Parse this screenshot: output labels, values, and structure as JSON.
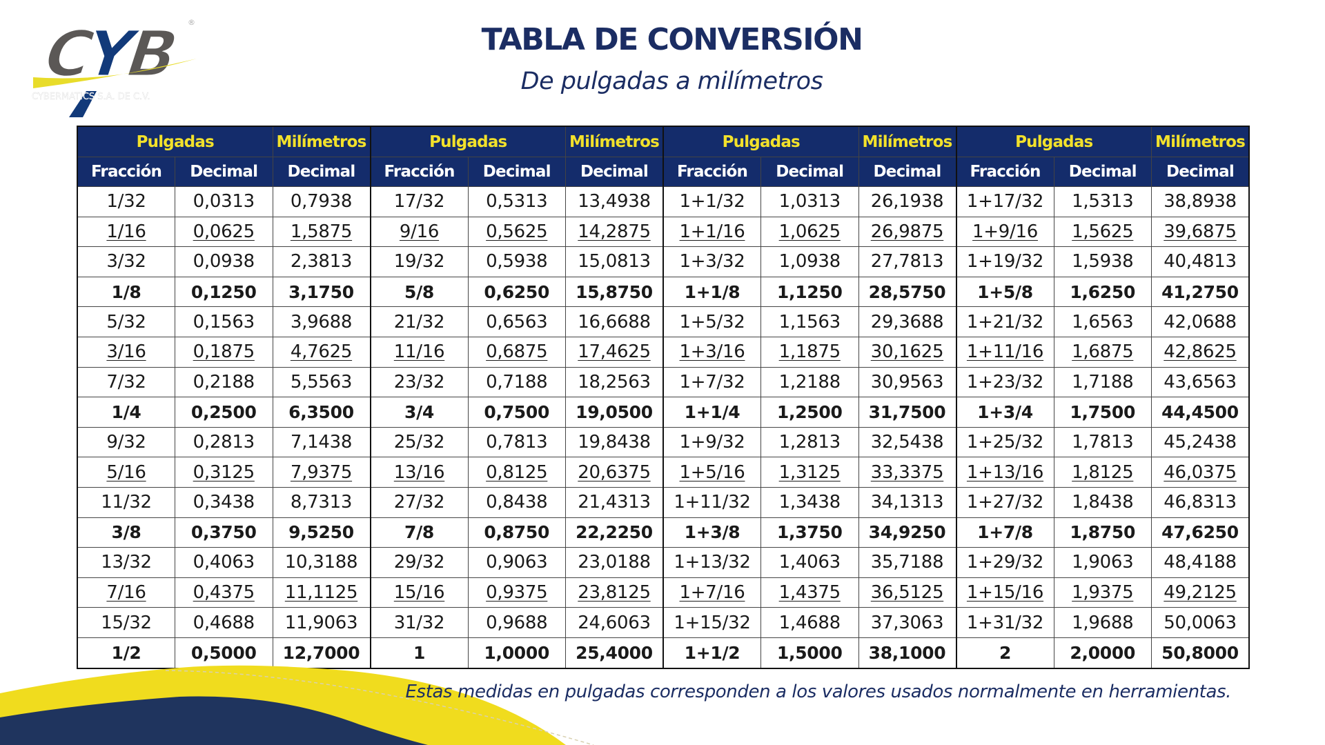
{
  "logo": {
    "text": "CYB",
    "tagline": "CYBERMATICS S.A. DE C.V.",
    "colors": {
      "gray": "#5b5856",
      "navy": "#123a7a",
      "yellow": "#e8dc2a"
    }
  },
  "title": "TABLA DE CONVERSIÓN",
  "subtitle": "De pulgadas a milímetros",
  "table": {
    "group_headers": [
      "Pulgadas",
      "Milímetros",
      "Pulgadas",
      "Milímetros",
      "Pulgadas",
      "Milímetros",
      "Pulgadas",
      "Milímetros"
    ],
    "sub_headers": [
      "Fracción",
      "Decimal",
      "Decimal",
      "Fracción",
      "Decimal",
      "Decimal",
      "Fracción",
      "Decimal",
      "Decimal",
      "Fracción",
      "Decimal",
      "Decimal"
    ],
    "rows": [
      {
        "style": "normal",
        "cells": [
          "1/32",
          "0,0313",
          "0,7938",
          "17/32",
          "0,5313",
          "13,4938",
          "1+1/32",
          "1,0313",
          "26,1938",
          "1+17/32",
          "1,5313",
          "38,8938"
        ]
      },
      {
        "style": "underline",
        "cells": [
          "1/16",
          "0,0625",
          "1,5875",
          "9/16",
          "0,5625",
          "14,2875",
          "1+1/16",
          "1,0625",
          "26,9875",
          "1+9/16",
          "1,5625",
          "39,6875"
        ]
      },
      {
        "style": "normal",
        "cells": [
          "3/32",
          "0,0938",
          "2,3813",
          "19/32",
          "0,5938",
          "15,0813",
          "1+3/32",
          "1,0938",
          "27,7813",
          "1+19/32",
          "1,5938",
          "40,4813"
        ]
      },
      {
        "style": "bold",
        "cells": [
          "1/8",
          "0,1250",
          "3,1750",
          "5/8",
          "0,6250",
          "15,8750",
          "1+1/8",
          "1,1250",
          "28,5750",
          "1+5/8",
          "1,6250",
          "41,2750"
        ]
      },
      {
        "style": "normal",
        "cells": [
          "5/32",
          "0,1563",
          "3,9688",
          "21/32",
          "0,6563",
          "16,6688",
          "1+5/32",
          "1,1563",
          "29,3688",
          "1+21/32",
          "1,6563",
          "42,0688"
        ]
      },
      {
        "style": "underline",
        "cells": [
          "3/16",
          "0,1875",
          "4,7625",
          "11/16",
          "0,6875",
          "17,4625",
          "1+3/16",
          "1,1875",
          "30,1625",
          "1+11/16",
          "1,6875",
          "42,8625"
        ]
      },
      {
        "style": "normal",
        "cells": [
          "7/32",
          "0,2188",
          "5,5563",
          "23/32",
          "0,7188",
          "18,2563",
          "1+7/32",
          "1,2188",
          "30,9563",
          "1+23/32",
          "1,7188",
          "43,6563"
        ]
      },
      {
        "style": "bold",
        "cells": [
          "1/4",
          "0,2500",
          "6,3500",
          "3/4",
          "0,7500",
          "19,0500",
          "1+1/4",
          "1,2500",
          "31,7500",
          "1+3/4",
          "1,7500",
          "44,4500"
        ]
      },
      {
        "style": "normal",
        "cells": [
          "9/32",
          "0,2813",
          "7,1438",
          "25/32",
          "0,7813",
          "19,8438",
          "1+9/32",
          "1,2813",
          "32,5438",
          "1+25/32",
          "1,7813",
          "45,2438"
        ]
      },
      {
        "style": "underline",
        "cells": [
          "5/16",
          "0,3125",
          "7,9375",
          "13/16",
          "0,8125",
          "20,6375",
          "1+5/16",
          "1,3125",
          "33,3375",
          "1+13/16",
          "1,8125",
          "46,0375"
        ]
      },
      {
        "style": "normal",
        "cells": [
          "11/32",
          "0,3438",
          "8,7313",
          "27/32",
          "0,8438",
          "21,4313",
          "1+11/32",
          "1,3438",
          "34,1313",
          "1+27/32",
          "1,8438",
          "46,8313"
        ]
      },
      {
        "style": "bold",
        "cells": [
          "3/8",
          "0,3750",
          "9,5250",
          "7/8",
          "0,8750",
          "22,2250",
          "1+3/8",
          "1,3750",
          "34,9250",
          "1+7/8",
          "1,8750",
          "47,6250"
        ]
      },
      {
        "style": "normal",
        "cells": [
          "13/32",
          "0,4063",
          "10,3188",
          "29/32",
          "0,9063",
          "23,0188",
          "1+13/32",
          "1,4063",
          "35,7188",
          "1+29/32",
          "1,9063",
          "48,4188"
        ]
      },
      {
        "style": "underline",
        "cells": [
          "7/16",
          "0,4375",
          "11,1125",
          "15/16",
          "0,9375",
          "23,8125",
          "1+7/16",
          "1,4375",
          "36,5125",
          "1+15/16",
          "1,9375",
          "49,2125"
        ]
      },
      {
        "style": "normal",
        "cells": [
          "15/32",
          "0,4688",
          "11,9063",
          "31/32",
          "0,9688",
          "24,6063",
          "1+15/32",
          "1,4688",
          "37,3063",
          "1+31/32",
          "1,9688",
          "50,0063"
        ]
      },
      {
        "style": "bold",
        "cells": [
          "1/2",
          "0,5000",
          "12,7000",
          "1",
          "1,0000",
          "25,4000",
          "1+1/2",
          "1,5000",
          "38,1000",
          "2",
          "2,0000",
          "50,8000"
        ]
      }
    ]
  },
  "footnote": "Estas medidas en pulgadas corresponden a los valores usados normalmente en herramientas.",
  "colors": {
    "navy": "#142c6b",
    "header_yellow": "#f2e12b",
    "wave_yellow": "#f0dc1e",
    "wave_navy": "#1f345e"
  }
}
